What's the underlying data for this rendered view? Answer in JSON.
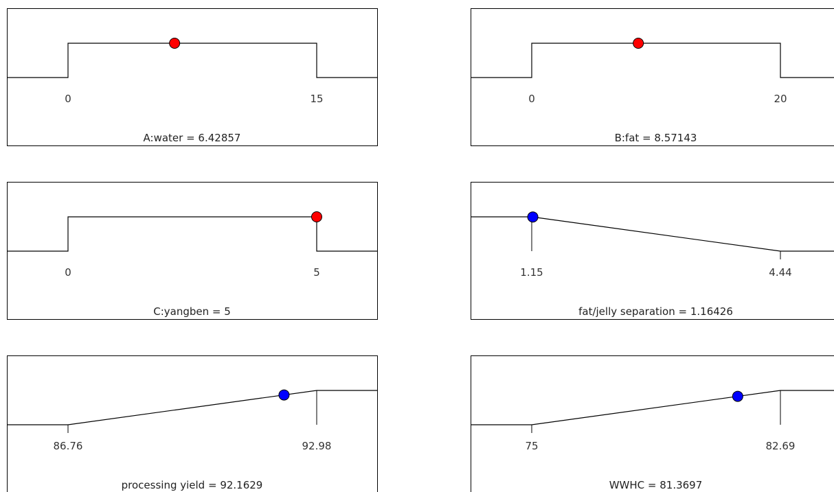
{
  "chart_data": [
    {
      "type": "line",
      "kind": "desirability-ramp",
      "caption": "A:water = 6.42857",
      "variable": "A:water",
      "value": 6.42857,
      "low": 0,
      "high": 15,
      "low_label": "0",
      "high_label": "15",
      "shape": "range",
      "point_color": "#ff0000"
    },
    {
      "type": "line",
      "kind": "desirability-ramp",
      "caption": "B:fat = 8.57143",
      "variable": "B:fat",
      "value": 8.57143,
      "low": 0,
      "high": 20,
      "low_label": "0",
      "high_label": "20",
      "shape": "range",
      "point_color": "#ff0000"
    },
    {
      "type": "line",
      "kind": "desirability-ramp",
      "caption": "C:yangben = 5",
      "variable": "C:yangben",
      "value": 5,
      "low": 0,
      "high": 5,
      "low_label": "0",
      "high_label": "5",
      "shape": "range",
      "point_color": "#ff0000"
    },
    {
      "type": "line",
      "kind": "desirability-ramp",
      "caption": "fat/jelly separation = 1.16426",
      "variable": "fat/jelly separation",
      "value": 1.16426,
      "low": 1.15,
      "high": 4.44,
      "low_label": "1.15",
      "high_label": "4.44",
      "shape": "minimize",
      "point_color": "#0000ff"
    },
    {
      "type": "line",
      "kind": "desirability-ramp",
      "caption": "processing yield = 92.1629",
      "variable": "processing yield",
      "value": 92.1629,
      "low": 86.76,
      "high": 92.98,
      "low_label": "86.76",
      "high_label": "92.98",
      "shape": "maximize",
      "point_color": "#0000ff"
    },
    {
      "type": "line",
      "kind": "desirability-ramp",
      "caption": "WWHC = 81.3697",
      "variable": "WWHC",
      "value": 81.3697,
      "low": 75,
      "high": 82.69,
      "low_label": "75",
      "high_label": "82.69",
      "shape": "maximize",
      "point_color": "#0000ff"
    }
  ]
}
